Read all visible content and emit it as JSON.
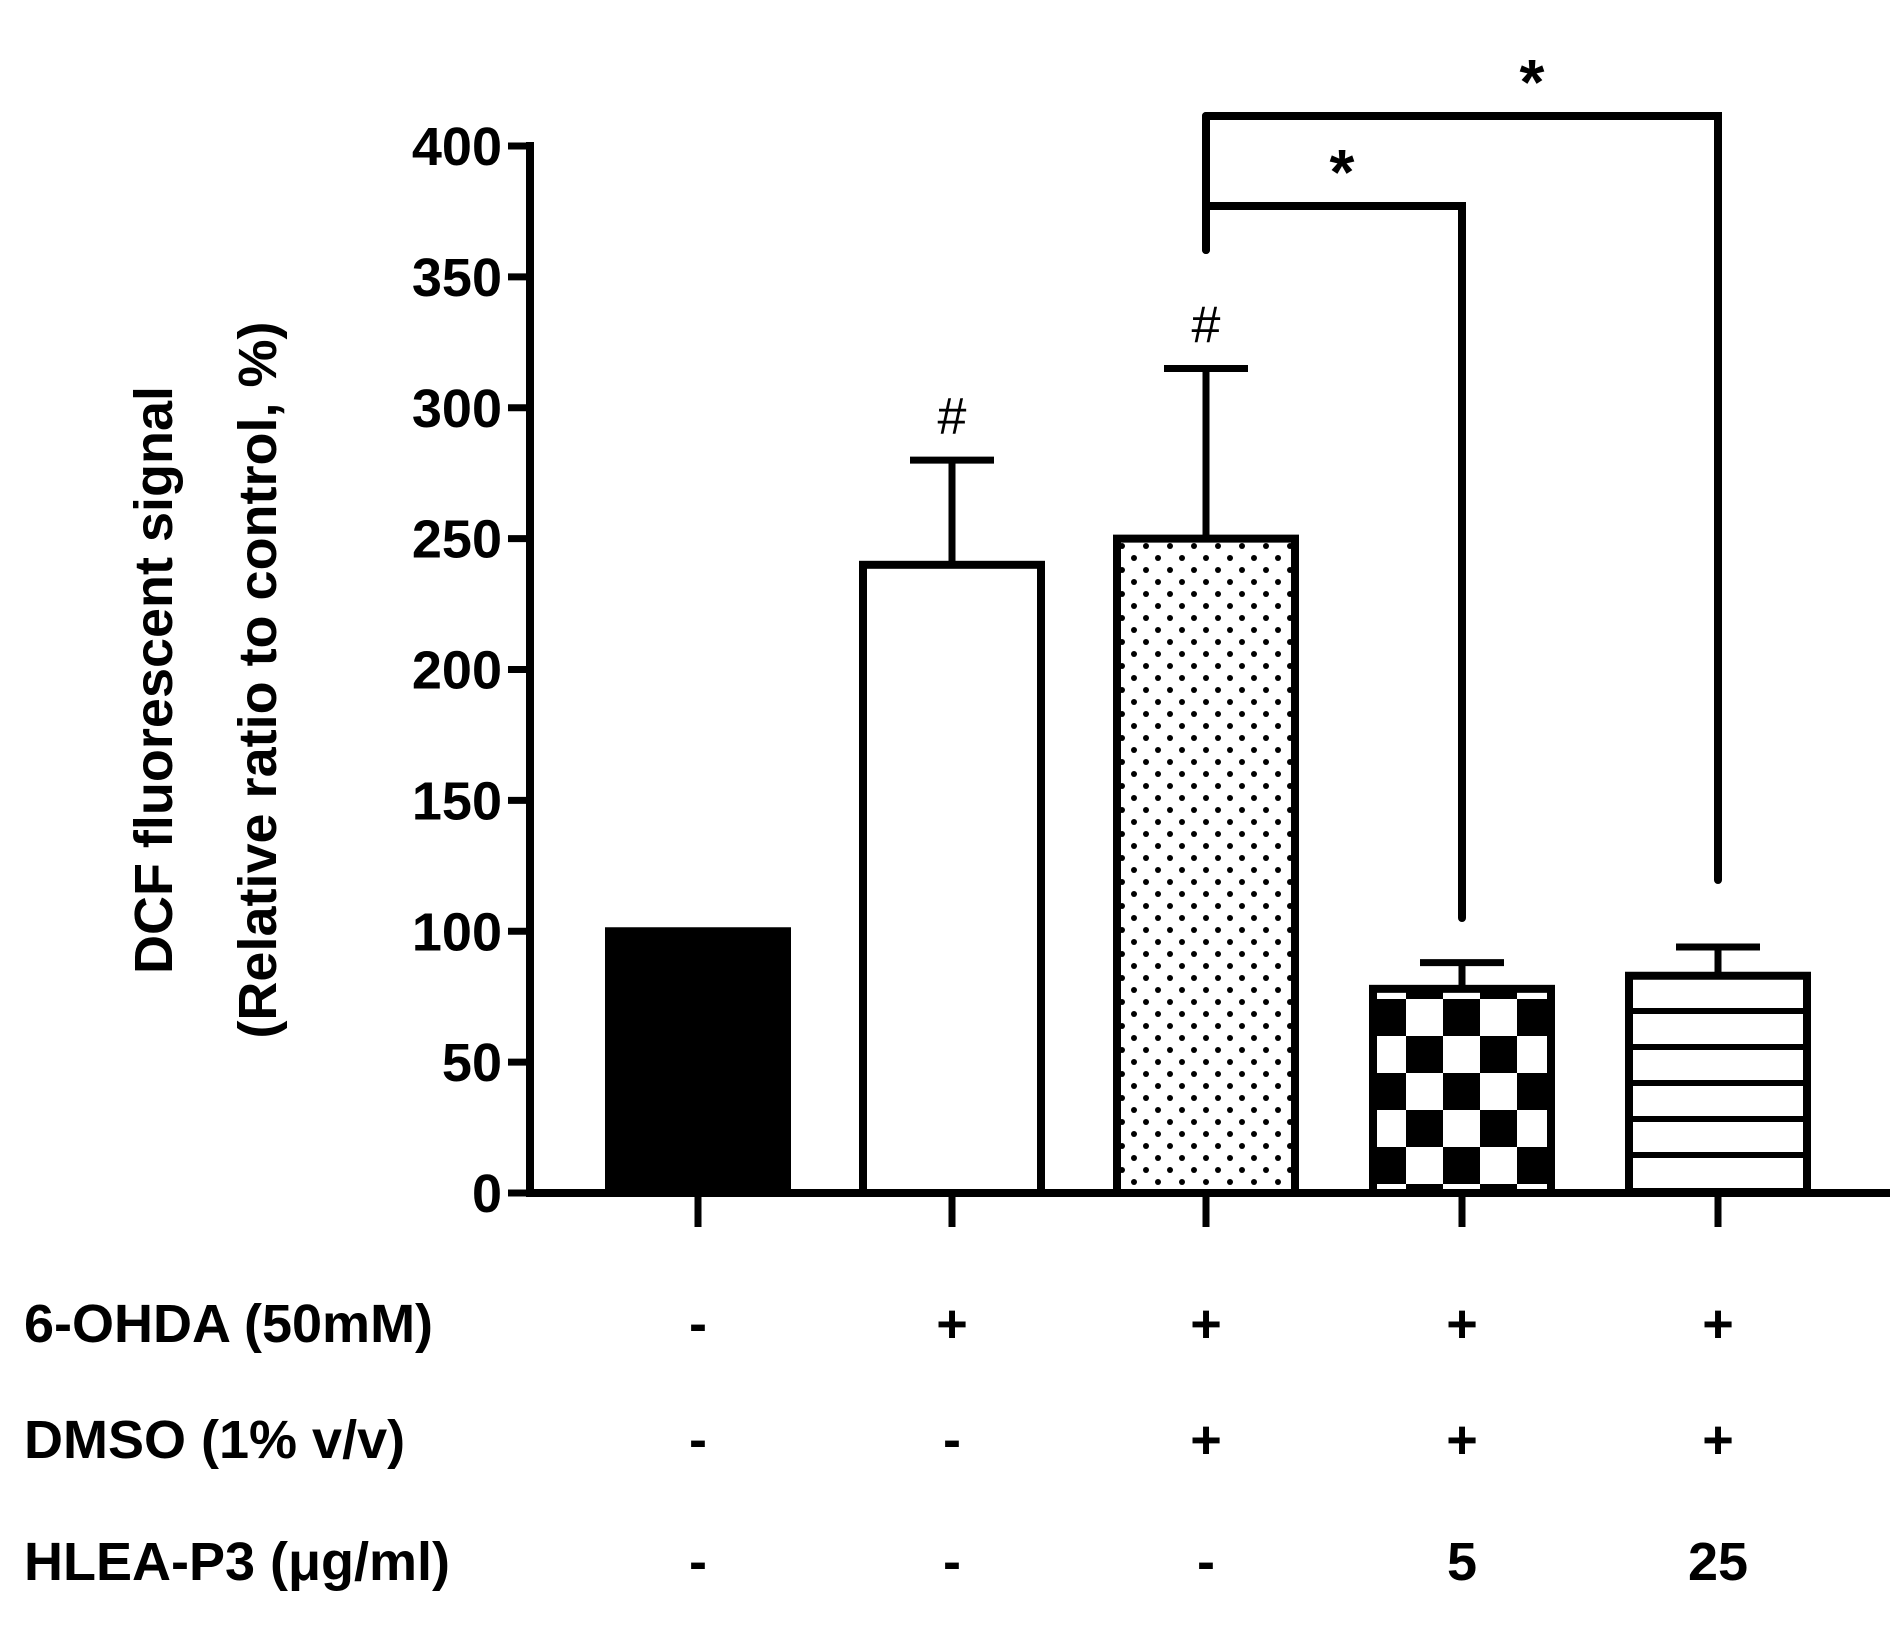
{
  "chart_data": {
    "type": "bar",
    "ylabel_line1": "DCF fluorescent signal",
    "ylabel_line2": "(Relative ratio to control, %)",
    "ylim": [
      0,
      400
    ],
    "yticks": [
      0,
      50,
      100,
      150,
      200,
      250,
      300,
      350,
      400
    ],
    "bars": [
      {
        "value": 100,
        "error": 0,
        "fill": "solid",
        "marker": ""
      },
      {
        "value": 240,
        "error": 40,
        "fill": "white",
        "marker": "#"
      },
      {
        "value": 250,
        "error": 65,
        "fill": "dots",
        "marker": "#"
      },
      {
        "value": 78,
        "error": 10,
        "fill": "checker",
        "marker": ""
      },
      {
        "value": 83,
        "error": 11,
        "fill": "hlines",
        "marker": ""
      }
    ],
    "significance": [
      {
        "from": 2,
        "to": 3,
        "label": "*"
      },
      {
        "from": 2,
        "to": 4,
        "label": "*"
      }
    ],
    "conditions": [
      {
        "label": "6-OHDA (50mM)",
        "values": [
          "-",
          "+",
          "+",
          "+",
          "+"
        ]
      },
      {
        "label": "DMSO (1% v/v)",
        "values": [
          "-",
          "-",
          "+",
          "+",
          "+"
        ]
      },
      {
        "label": "HLEA-P3 (μg/ml)",
        "values": [
          "-",
          "-",
          "-",
          "5",
          "25"
        ]
      }
    ]
  }
}
